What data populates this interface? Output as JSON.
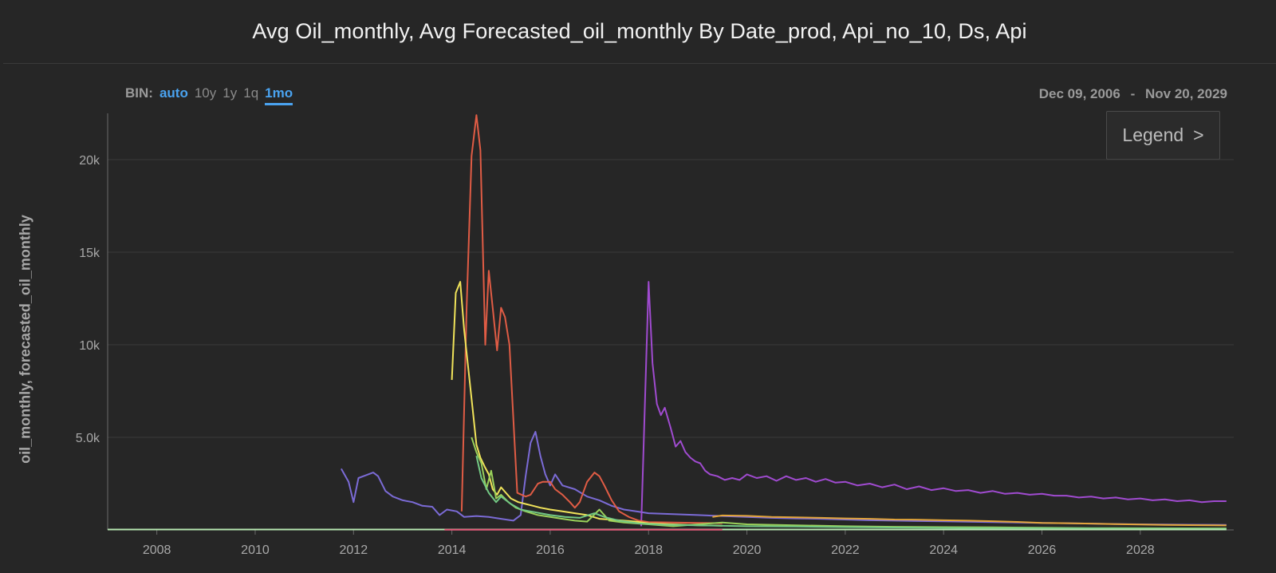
{
  "title": "Avg Oil_monthly, Avg Forecasted_oil_monthly By Date_prod, Api_no_10, Ds, Api",
  "bin": {
    "label": "BIN:",
    "options": [
      "auto",
      "10y",
      "1y",
      "1q",
      "1mo"
    ],
    "active": "auto",
    "selected": "1mo"
  },
  "date_range": {
    "start": "Dec 09, 2006",
    "separator": "-",
    "end": "Nov 20, 2029"
  },
  "legend_button": {
    "label": "Legend",
    "chevron": ">"
  },
  "colors": {
    "background": "#262626",
    "grid": "#3a3a3a",
    "axis": "#6a6a6a",
    "accent": "#4aa3f0"
  },
  "chart_data": {
    "type": "line",
    "title": "Avg Oil_monthly, Avg Forecasted_oil_monthly By Date_prod, Api_no_10, Ds, Api",
    "xlabel": "",
    "ylabel": "oil_monthly, forecasted_oil_monthly",
    "xlim": [
      2007.0,
      2029.9
    ],
    "ylim": [
      0,
      22500
    ],
    "xticks": [
      2008,
      2010,
      2012,
      2014,
      2016,
      2018,
      2020,
      2022,
      2024,
      2026,
      2028
    ],
    "yticks": [
      {
        "value": 5000,
        "label": "5.0k"
      },
      {
        "value": 10000,
        "label": "10k"
      },
      {
        "value": 15000,
        "label": "15k"
      },
      {
        "value": 20000,
        "label": "20k"
      }
    ],
    "grid": true,
    "series": [
      {
        "color": "#7b6bd6",
        "points": [
          [
            2011.75,
            3300
          ],
          [
            2011.9,
            2600
          ],
          [
            2012.0,
            1500
          ],
          [
            2012.1,
            2800
          ],
          [
            2012.25,
            2950
          ],
          [
            2012.4,
            3100
          ],
          [
            2012.5,
            2900
          ],
          [
            2012.65,
            2100
          ],
          [
            2012.8,
            1800
          ],
          [
            2013.0,
            1600
          ],
          [
            2013.2,
            1500
          ],
          [
            2013.4,
            1300
          ],
          [
            2013.6,
            1250
          ],
          [
            2013.75,
            800
          ],
          [
            2013.9,
            1100
          ],
          [
            2014.1,
            1000
          ],
          [
            2014.25,
            700
          ],
          [
            2014.5,
            750
          ],
          [
            2014.75,
            700
          ],
          [
            2015.0,
            600
          ],
          [
            2015.25,
            500
          ],
          [
            2015.4,
            800
          ],
          [
            2015.5,
            2900
          ],
          [
            2015.6,
            4700
          ],
          [
            2015.7,
            5300
          ],
          [
            2015.8,
            4000
          ],
          [
            2015.9,
            3000
          ],
          [
            2016.0,
            2400
          ],
          [
            2016.1,
            3000
          ],
          [
            2016.25,
            2400
          ],
          [
            2016.5,
            2200
          ],
          [
            2016.75,
            1800
          ],
          [
            2017.0,
            1600
          ],
          [
            2017.25,
            1300
          ],
          [
            2017.5,
            1100
          ],
          [
            2017.75,
            1000
          ],
          [
            2018.0,
            900
          ],
          [
            2018.5,
            850
          ],
          [
            2019.0,
            800
          ],
          [
            2019.5,
            750
          ],
          [
            2020.0,
            700
          ],
          [
            2020.5,
            650
          ],
          [
            2021.0,
            620
          ],
          [
            2021.5,
            600
          ],
          [
            2022.0,
            560
          ],
          [
            2022.5,
            520
          ],
          [
            2023.0,
            500
          ],
          [
            2023.5,
            480
          ],
          [
            2024.0,
            460
          ],
          [
            2024.5,
            440
          ],
          [
            2025.0,
            420
          ],
          [
            2025.5,
            400
          ],
          [
            2026.0,
            380
          ],
          [
            2026.5,
            360
          ],
          [
            2027.0,
            340
          ],
          [
            2027.5,
            320
          ],
          [
            2028.0,
            300
          ],
          [
            2028.5,
            290
          ],
          [
            2029.0,
            280
          ],
          [
            2029.75,
            270
          ]
        ]
      },
      {
        "color": "#a04bd0",
        "points": [
          [
            2017.85,
            200
          ],
          [
            2017.95,
            9000
          ],
          [
            2018.0,
            13400
          ],
          [
            2018.08,
            9000
          ],
          [
            2018.17,
            6800
          ],
          [
            2018.25,
            6200
          ],
          [
            2018.33,
            6600
          ],
          [
            2018.45,
            5500
          ],
          [
            2018.55,
            4500
          ],
          [
            2018.65,
            4800
          ],
          [
            2018.75,
            4200
          ],
          [
            2018.85,
            3900
          ],
          [
            2018.95,
            3700
          ],
          [
            2019.05,
            3600
          ],
          [
            2019.15,
            3200
          ],
          [
            2019.25,
            3000
          ],
          [
            2019.4,
            2900
          ],
          [
            2019.55,
            2700
          ],
          [
            2019.7,
            2800
          ],
          [
            2019.85,
            2700
          ],
          [
            2020.0,
            3000
          ],
          [
            2020.2,
            2800
          ],
          [
            2020.4,
            2900
          ],
          [
            2020.6,
            2650
          ],
          [
            2020.8,
            2900
          ],
          [
            2021.0,
            2700
          ],
          [
            2021.2,
            2800
          ],
          [
            2021.4,
            2600
          ],
          [
            2021.6,
            2750
          ],
          [
            2021.8,
            2550
          ],
          [
            2022.0,
            2600
          ],
          [
            2022.25,
            2400
          ],
          [
            2022.5,
            2500
          ],
          [
            2022.75,
            2300
          ],
          [
            2023.0,
            2450
          ],
          [
            2023.25,
            2200
          ],
          [
            2023.5,
            2350
          ],
          [
            2023.75,
            2150
          ],
          [
            2024.0,
            2250
          ],
          [
            2024.25,
            2100
          ],
          [
            2024.5,
            2150
          ],
          [
            2024.75,
            2000
          ],
          [
            2025.0,
            2100
          ],
          [
            2025.25,
            1950
          ],
          [
            2025.5,
            2000
          ],
          [
            2025.75,
            1900
          ],
          [
            2026.0,
            1950
          ],
          [
            2026.25,
            1850
          ],
          [
            2026.5,
            1850
          ],
          [
            2026.75,
            1750
          ],
          [
            2027.0,
            1800
          ],
          [
            2027.25,
            1700
          ],
          [
            2027.5,
            1750
          ],
          [
            2027.75,
            1650
          ],
          [
            2028.0,
            1700
          ],
          [
            2028.25,
            1600
          ],
          [
            2028.5,
            1650
          ],
          [
            2028.75,
            1550
          ],
          [
            2029.0,
            1600
          ],
          [
            2029.25,
            1500
          ],
          [
            2029.5,
            1550
          ],
          [
            2029.75,
            1550
          ]
        ]
      },
      {
        "color": "#e05c45",
        "points": [
          [
            2014.2,
            1000
          ],
          [
            2014.3,
            12000
          ],
          [
            2014.4,
            20200
          ],
          [
            2014.5,
            22400
          ],
          [
            2014.58,
            20500
          ],
          [
            2014.68,
            10000
          ],
          [
            2014.75,
            14000
          ],
          [
            2014.83,
            12000
          ],
          [
            2014.92,
            9700
          ],
          [
            2015.0,
            12000
          ],
          [
            2015.08,
            11500
          ],
          [
            2015.17,
            10000
          ],
          [
            2015.25,
            6000
          ],
          [
            2015.33,
            2000
          ],
          [
            2015.5,
            1800
          ],
          [
            2015.6,
            1900
          ],
          [
            2015.75,
            2500
          ],
          [
            2015.85,
            2600
          ],
          [
            2016.0,
            2600
          ],
          [
            2016.1,
            2200
          ],
          [
            2016.25,
            1900
          ],
          [
            2016.4,
            1500
          ],
          [
            2016.5,
            1200
          ],
          [
            2016.6,
            1500
          ],
          [
            2016.75,
            2600
          ],
          [
            2016.9,
            3100
          ],
          [
            2017.0,
            2900
          ],
          [
            2017.1,
            2400
          ],
          [
            2017.25,
            1600
          ],
          [
            2017.4,
            1000
          ],
          [
            2017.6,
            700
          ],
          [
            2017.8,
            500
          ],
          [
            2018.0,
            420
          ],
          [
            2018.5,
            400
          ],
          [
            2019.0,
            380
          ],
          [
            2019.5,
            360
          ]
        ]
      },
      {
        "color": "#f0e35a",
        "points": [
          [
            2014.0,
            8100
          ],
          [
            2014.08,
            12800
          ],
          [
            2014.17,
            13400
          ],
          [
            2014.25,
            10800
          ],
          [
            2014.33,
            8800
          ],
          [
            2014.42,
            6600
          ],
          [
            2014.5,
            4600
          ],
          [
            2014.58,
            3900
          ],
          [
            2014.67,
            3400
          ],
          [
            2014.75,
            3000
          ],
          [
            2014.83,
            2200
          ],
          [
            2014.92,
            1900
          ],
          [
            2015.0,
            2300
          ],
          [
            2015.1,
            2000
          ],
          [
            2015.2,
            1700
          ],
          [
            2015.35,
            1500
          ],
          [
            2015.5,
            1400
          ],
          [
            2015.65,
            1300
          ],
          [
            2015.8,
            1200
          ],
          [
            2016.0,
            1100
          ],
          [
            2016.25,
            1000
          ],
          [
            2016.5,
            900
          ],
          [
            2016.75,
            800
          ],
          [
            2017.0,
            600
          ],
          [
            2017.25,
            550
          ],
          [
            2017.5,
            500
          ],
          [
            2017.75,
            450
          ],
          [
            2018.0,
            350
          ],
          [
            2018.5,
            300
          ],
          [
            2019.0,
            250
          ],
          [
            2019.5,
            230
          ]
        ]
      },
      {
        "color": "#e3a53a",
        "points": [
          [
            2019.3,
            700
          ],
          [
            2019.5,
            780
          ],
          [
            2020.0,
            760
          ],
          [
            2020.5,
            700
          ],
          [
            2021.0,
            680
          ],
          [
            2021.5,
            650
          ],
          [
            2022.0,
            620
          ],
          [
            2022.5,
            600
          ],
          [
            2023.0,
            560
          ],
          [
            2023.5,
            550
          ],
          [
            2024.0,
            520
          ],
          [
            2024.5,
            500
          ],
          [
            2025.0,
            470
          ],
          [
            2025.5,
            430
          ],
          [
            2026.0,
            380
          ],
          [
            2026.5,
            360
          ],
          [
            2027.0,
            340
          ],
          [
            2027.5,
            310
          ],
          [
            2028.0,
            290
          ],
          [
            2028.5,
            270
          ],
          [
            2029.0,
            260
          ],
          [
            2029.75,
            240
          ]
        ]
      },
      {
        "color": "#9ad15a",
        "points": [
          [
            2014.4,
            5000
          ],
          [
            2014.5,
            4200
          ],
          [
            2014.6,
            3600
          ],
          [
            2014.7,
            2200
          ],
          [
            2014.8,
            3200
          ],
          [
            2014.9,
            1700
          ],
          [
            2015.0,
            1900
          ],
          [
            2015.15,
            1500
          ],
          [
            2015.3,
            1200
          ],
          [
            2015.5,
            1000
          ],
          [
            2015.75,
            800
          ],
          [
            2016.0,
            700
          ],
          [
            2016.25,
            600
          ],
          [
            2016.5,
            500
          ],
          [
            2016.75,
            450
          ],
          [
            2017.0,
            1100
          ],
          [
            2017.2,
            500
          ],
          [
            2017.5,
            400
          ],
          [
            2018.0,
            300
          ],
          [
            2018.5,
            200
          ],
          [
            2019.5,
            400
          ],
          [
            2020.0,
            300
          ],
          [
            2021.0,
            250
          ],
          [
            2022.0,
            200
          ],
          [
            2023.0,
            170
          ],
          [
            2024.0,
            150
          ],
          [
            2025.0,
            140
          ],
          [
            2026.0,
            120
          ],
          [
            2027.0,
            100
          ],
          [
            2028.0,
            90
          ],
          [
            2029.75,
            80
          ]
        ]
      },
      {
        "color": "#73c984",
        "points": [
          [
            2014.5,
            4000
          ],
          [
            2014.6,
            2800
          ],
          [
            2014.75,
            2000
          ],
          [
            2014.9,
            1500
          ],
          [
            2015.0,
            1800
          ],
          [
            2015.2,
            1400
          ],
          [
            2015.4,
            1100
          ],
          [
            2015.6,
            1000
          ],
          [
            2015.8,
            900
          ],
          [
            2016.0,
            800
          ],
          [
            2016.3,
            700
          ],
          [
            2016.6,
            650
          ],
          [
            2016.9,
            900
          ],
          [
            2017.1,
            700
          ],
          [
            2017.4,
            500
          ],
          [
            2017.8,
            350
          ],
          [
            2018.3,
            280
          ],
          [
            2019.0,
            250
          ],
          [
            2020.0,
            200
          ],
          [
            2021.0,
            180
          ],
          [
            2022.0,
            150
          ],
          [
            2023.0,
            130
          ],
          [
            2024.0,
            110
          ],
          [
            2025.0,
            100
          ],
          [
            2026.0,
            90
          ],
          [
            2027.0,
            80
          ],
          [
            2028.0,
            70
          ],
          [
            2029.75,
            60
          ]
        ]
      },
      {
        "color": "#b6e6b0",
        "points": [
          [
            2007.0,
            20
          ],
          [
            2010.0,
            20
          ],
          [
            2013.85,
            20
          ],
          [
            2016.0,
            20
          ],
          [
            2020.0,
            20
          ],
          [
            2025.0,
            20
          ],
          [
            2029.75,
            20
          ]
        ]
      },
      {
        "color": "#e35a7a",
        "points": [
          [
            2013.85,
            10
          ],
          [
            2015.0,
            10
          ],
          [
            2017.0,
            10
          ],
          [
            2019.5,
            10
          ]
        ]
      }
    ]
  }
}
